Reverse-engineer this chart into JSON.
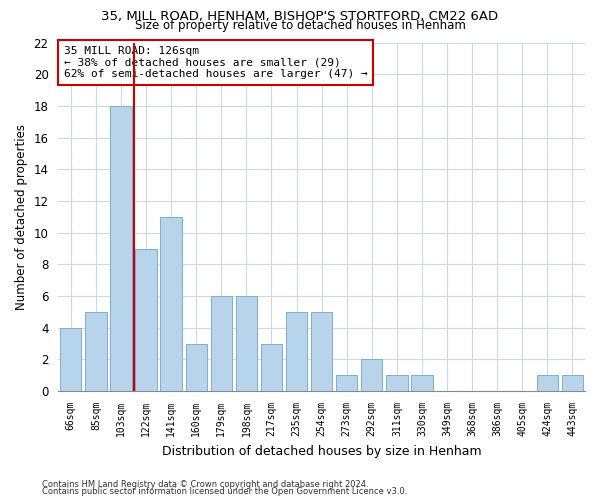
{
  "title1": "35, MILL ROAD, HENHAM, BISHOP'S STORTFORD, CM22 6AD",
  "title2": "Size of property relative to detached houses in Henham",
  "xlabel": "Distribution of detached houses by size in Henham",
  "ylabel": "Number of detached properties",
  "categories": [
    "66sqm",
    "85sqm",
    "103sqm",
    "122sqm",
    "141sqm",
    "160sqm",
    "179sqm",
    "198sqm",
    "217sqm",
    "235sqm",
    "254sqm",
    "273sqm",
    "292sqm",
    "311sqm",
    "330sqm",
    "349sqm",
    "368sqm",
    "386sqm",
    "405sqm",
    "424sqm",
    "443sqm"
  ],
  "values": [
    4,
    5,
    18,
    9,
    11,
    3,
    6,
    6,
    3,
    5,
    5,
    1,
    2,
    1,
    1,
    0,
    0,
    0,
    0,
    1,
    1
  ],
  "bar_color": "#b8d4ea",
  "bar_edge_color": "#7aafd4",
  "vline_index": 3,
  "annotation_line1": "35 MILL ROAD: 126sqm",
  "annotation_line2": "← 38% of detached houses are smaller (29)",
  "annotation_line3": "62% of semi-detached houses are larger (47) →",
  "annotation_box_color": "#ffffff",
  "annotation_box_edge": "#cc0000",
  "vline_color": "#cc0000",
  "ylim": [
    0,
    22
  ],
  "yticks": [
    0,
    2,
    4,
    6,
    8,
    10,
    12,
    14,
    16,
    18,
    20,
    22
  ],
  "footer1": "Contains HM Land Registry data © Crown copyright and database right 2024.",
  "footer2": "Contains public sector information licensed under the Open Government Licence v3.0.",
  "bg_color": "#ffffff",
  "plot_bg_color": "#ffffff",
  "grid_color": "#d0d8e8"
}
